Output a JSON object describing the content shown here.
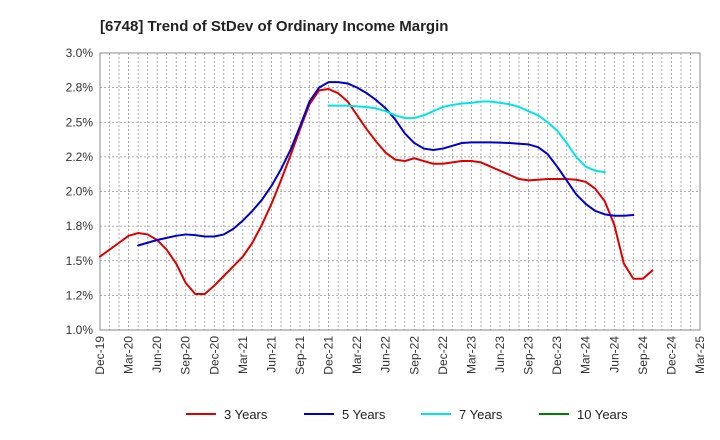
{
  "chart_data": {
    "type": "line",
    "title": "[6748]  Trend of StDev of Ordinary Income Margin",
    "xlabel": "",
    "ylabel": "",
    "ylim": [
      1.0,
      3.0
    ],
    "y_ticks": [
      "3.0%",
      "2.8%",
      "2.5%",
      "2.2%",
      "2.0%",
      "1.8%",
      "1.5%",
      "1.2%",
      "1.0%"
    ],
    "x_ticks": [
      "Dec-19",
      "Mar-20",
      "Jun-20",
      "Sep-20",
      "Dec-20",
      "Mar-21",
      "Jun-21",
      "Sep-21",
      "Dec-21",
      "Mar-22",
      "Jun-22",
      "Sep-22",
      "Dec-22",
      "Mar-23",
      "Jun-23",
      "Sep-23",
      "Dec-23",
      "Mar-24",
      "Jun-24",
      "Sep-24",
      "Dec-24",
      "Mar-25"
    ],
    "grid": true,
    "legend_position": "bottom",
    "series": [
      {
        "name": "3 Years",
        "color": "#dd0000",
        "start_index": 0,
        "values": [
          1.53,
          1.58,
          1.63,
          1.68,
          1.7,
          1.69,
          1.65,
          1.58,
          1.48,
          1.34,
          1.26,
          1.26,
          1.32,
          1.39,
          1.46,
          1.53,
          1.63,
          1.76,
          1.91,
          2.08,
          2.26,
          2.45,
          2.63,
          2.73,
          2.74,
          2.71,
          2.65,
          2.55,
          2.45,
          2.36,
          2.28,
          2.23,
          2.22,
          2.24,
          2.22,
          2.2,
          2.2,
          2.21,
          2.22,
          2.22,
          2.21,
          2.18,
          2.15,
          2.12,
          2.09,
          2.08,
          2.085,
          2.09,
          2.09,
          2.09,
          2.085,
          2.07,
          2.02,
          1.93,
          1.76,
          1.48,
          1.37,
          1.37,
          1.43
        ]
      },
      {
        "name": "5 Years",
        "color": "#0000cc",
        "start_index": 4,
        "values": [
          1.61,
          1.63,
          1.65,
          1.665,
          1.68,
          1.69,
          1.685,
          1.675,
          1.675,
          1.69,
          1.73,
          1.79,
          1.86,
          1.94,
          2.04,
          2.16,
          2.3,
          2.47,
          2.65,
          2.75,
          2.79,
          2.79,
          2.78,
          2.75,
          2.71,
          2.66,
          2.6,
          2.52,
          2.42,
          2.35,
          2.31,
          2.3,
          2.31,
          2.33,
          2.35,
          2.355,
          2.355,
          2.355,
          2.353,
          2.35,
          2.345,
          2.34,
          2.32,
          2.27,
          2.18,
          2.08,
          1.98,
          1.91,
          1.86,
          1.835,
          1.825,
          1.825,
          1.83
        ]
      },
      {
        "name": "7 Years",
        "color": "#00e5e5",
        "start_index": 24,
        "values": [
          2.62,
          2.62,
          2.62,
          2.615,
          2.61,
          2.6,
          2.58,
          2.55,
          2.53,
          2.53,
          2.55,
          2.58,
          2.61,
          2.625,
          2.635,
          2.64,
          2.65,
          2.65,
          2.64,
          2.63,
          2.61,
          2.58,
          2.55,
          2.5,
          2.44,
          2.35,
          2.25,
          2.18,
          2.15,
          2.14
        ]
      },
      {
        "name": "10 Years",
        "color": "#008000",
        "start_index": 0,
        "values": []
      }
    ]
  }
}
